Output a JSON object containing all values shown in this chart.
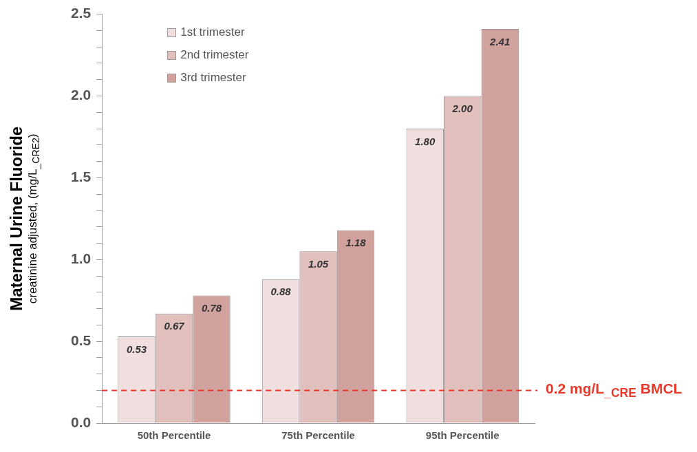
{
  "chart_data": {
    "type": "bar",
    "ylabel": "Maternal Urine Fluoride\ncreatinine adjusted, (mg/L$_{_CRE2}$)",
    "categories": [
      "50th Percentile",
      "75th Percentile",
      "95th Percentile"
    ],
    "series": [
      {
        "name": "1st trimester",
        "color": "#f0dfde",
        "values": [
          0.53,
          0.88,
          1.8
        ],
        "value_labels": [
          "0.53",
          "0.88",
          "1.80"
        ]
      },
      {
        "name": "2nd trimester",
        "color": "#e0bfbd",
        "values": [
          0.67,
          1.05,
          2.0
        ],
        "value_labels": [
          "0.67",
          "1.05",
          "2.00"
        ]
      },
      {
        "name": "3rd trimester",
        "color": "#d1a19e",
        "values": [
          0.78,
          1.18,
          2.41
        ],
        "value_labels": [
          "0.78",
          "1.18",
          "2.41"
        ]
      }
    ],
    "ylim": [
      0,
      2.5
    ],
    "yticks": [
      {
        "value": 0,
        "label": "0.0"
      },
      {
        "value": 0.1,
        "label": null
      },
      {
        "value": 0.2,
        "label": null
      },
      {
        "value": 0.3,
        "label": null
      },
      {
        "value": 0.4,
        "label": null
      },
      {
        "value": 0.5,
        "label": "0.5"
      },
      {
        "value": 0.6,
        "label": null
      },
      {
        "value": 0.7,
        "label": null
      },
      {
        "value": 0.8,
        "label": null
      },
      {
        "value": 0.9,
        "label": null
      },
      {
        "value": 1,
        "label": "1.0"
      },
      {
        "value": 1.1,
        "label": null
      },
      {
        "value": 1.2,
        "label": null
      },
      {
        "value": 1.3,
        "label": null
      },
      {
        "value": 1.4,
        "label": null
      },
      {
        "value": 1.5,
        "label": "1.5"
      },
      {
        "value": 1.6,
        "label": null
      },
      {
        "value": 1.7,
        "label": null
      },
      {
        "value": 1.8,
        "label": null
      },
      {
        "value": 1.9,
        "label": null
      },
      {
        "value": 2,
        "label": "2.0"
      },
      {
        "value": 2.1,
        "label": null
      },
      {
        "value": 2.2,
        "label": null
      },
      {
        "value": 2.3,
        "label": null
      },
      {
        "value": 2.4,
        "label": null
      },
      {
        "value": 2.5,
        "label": "2.5"
      }
    ],
    "ref_lines": [
      {
        "axis": "y",
        "value": 0.2,
        "label": "0.2 mg/L$_{_CRE}$ BMCL",
        "color": "#e8392a",
        "line_style": "dashed"
      }
    ],
    "grid": false,
    "legend": "top left"
  }
}
